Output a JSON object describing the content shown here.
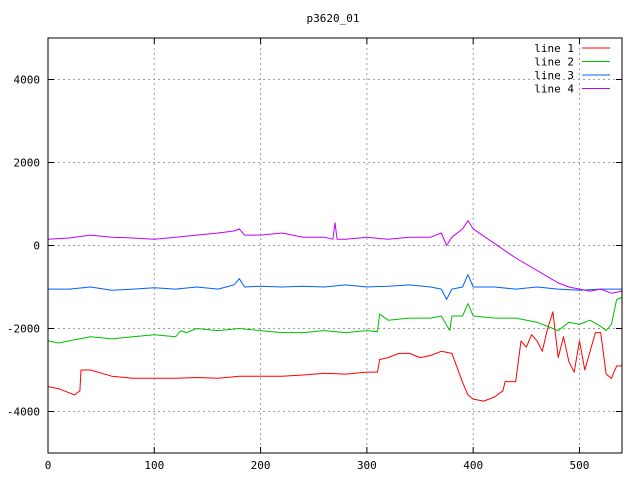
{
  "chart_data": {
    "type": "line",
    "title": "p3620_01",
    "xlabel": "",
    "ylabel": "",
    "xlim": [
      0,
      540
    ],
    "ylim": [
      -5000,
      5000
    ],
    "xticks": [
      0,
      100,
      200,
      300,
      400,
      500
    ],
    "yticks": [
      -4000,
      -2000,
      0,
      2000,
      4000
    ],
    "xtick_labels": [
      "0",
      "100",
      "200",
      "300",
      "400",
      "500"
    ],
    "ytick_labels": [
      "-4000",
      "-2000",
      "0",
      "2000",
      "4000"
    ],
    "grid": true,
    "legend_position": "top-right",
    "series": [
      {
        "name": "line 1",
        "color": "#ff0000",
        "x": [
          0,
          10,
          20,
          25,
          30,
          31,
          40,
          60,
          80,
          100,
          120,
          140,
          160,
          180,
          200,
          220,
          240,
          260,
          280,
          300,
          310,
          312,
          320,
          330,
          340,
          350,
          360,
          370,
          380,
          390,
          395,
          400,
          410,
          420,
          428,
          430,
          440,
          445,
          450,
          455,
          460,
          465,
          470,
          475,
          480,
          485,
          490,
          495,
          500,
          505,
          510,
          515,
          520,
          525,
          530,
          535,
          540
        ],
        "y": [
          -3400,
          -3450,
          -3550,
          -3600,
          -3500,
          -3000,
          -3000,
          -3150,
          -3200,
          -3200,
          -3200,
          -3180,
          -3200,
          -3150,
          -3150,
          -3150,
          -3120,
          -3080,
          -3100,
          -3050,
          -3050,
          -2750,
          -2700,
          -2600,
          -2600,
          -2700,
          -2650,
          -2550,
          -2600,
          -3300,
          -3600,
          -3700,
          -3750,
          -3650,
          -3500,
          -3280,
          -3280,
          -2300,
          -2450,
          -2150,
          -2300,
          -2550,
          -2000,
          -1600,
          -2700,
          -2200,
          -2800,
          -3050,
          -2300,
          -3000,
          -2550,
          -2100,
          -2100,
          -3100,
          -3200,
          -2900,
          -2900
        ]
      },
      {
        "name": "line 2",
        "color": "#00c000",
        "x": [
          0,
          10,
          20,
          40,
          60,
          80,
          100,
          120,
          125,
          130,
          140,
          160,
          180,
          200,
          220,
          240,
          260,
          280,
          300,
          310,
          312,
          320,
          340,
          360,
          370,
          378,
          380,
          390,
          395,
          400,
          420,
          440,
          460,
          470,
          480,
          490,
          500,
          510,
          520,
          525,
          530,
          535,
          540
        ],
        "y": [
          -2300,
          -2350,
          -2300,
          -2200,
          -2250,
          -2200,
          -2150,
          -2200,
          -2050,
          -2100,
          -2000,
          -2050,
          -2000,
          -2050,
          -2100,
          -2100,
          -2050,
          -2100,
          -2050,
          -2080,
          -1650,
          -1800,
          -1750,
          -1750,
          -1700,
          -2050,
          -1700,
          -1700,
          -1400,
          -1700,
          -1750,
          -1750,
          -1850,
          -1950,
          -2050,
          -1850,
          -1900,
          -1800,
          -1950,
          -2050,
          -1900,
          -1300,
          -1250
        ]
      },
      {
        "name": "line 3",
        "color": "#0060ff",
        "x": [
          0,
          20,
          40,
          60,
          80,
          100,
          120,
          140,
          160,
          175,
          180,
          185,
          200,
          220,
          240,
          260,
          280,
          300,
          320,
          340,
          360,
          370,
          375,
          380,
          390,
          395,
          400,
          420,
          440,
          460,
          480,
          500,
          520,
          540
        ],
        "y": [
          -1050,
          -1050,
          -1000,
          -1080,
          -1050,
          -1020,
          -1050,
          -1000,
          -1050,
          -950,
          -800,
          -1000,
          -980,
          -1000,
          -980,
          -1000,
          -950,
          -1000,
          -980,
          -950,
          -1000,
          -1050,
          -1300,
          -1050,
          -1000,
          -700,
          -1000,
          -1000,
          -1050,
          -1000,
          -1050,
          -1080,
          -1050,
          -1050
        ]
      },
      {
        "name": "line 4",
        "color": "#c000ff",
        "x": [
          0,
          20,
          40,
          60,
          80,
          100,
          120,
          140,
          160,
          175,
          180,
          185,
          200,
          220,
          240,
          260,
          268,
          270,
          272,
          280,
          300,
          320,
          340,
          360,
          370,
          375,
          380,
          390,
          395,
          400,
          420,
          440,
          460,
          480,
          490,
          500,
          510,
          520,
          530,
          540
        ],
        "y": [
          150,
          180,
          250,
          200,
          180,
          150,
          200,
          250,
          300,
          350,
          400,
          250,
          250,
          300,
          200,
          200,
          150,
          550,
          150,
          150,
          200,
          150,
          200,
          200,
          300,
          0,
          200,
          400,
          600,
          400,
          50,
          -300,
          -600,
          -900,
          -1000,
          -1050,
          -1100,
          -1050,
          -1150,
          -1100
        ]
      }
    ]
  }
}
